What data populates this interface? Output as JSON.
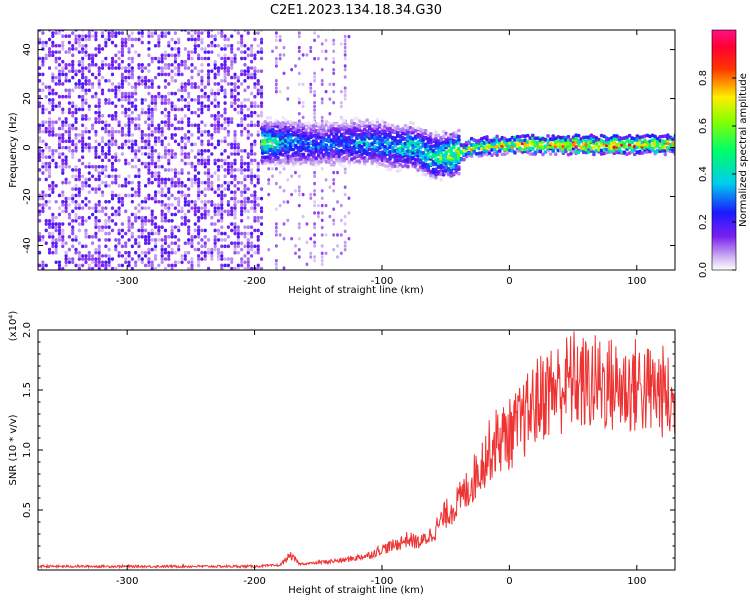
{
  "title": "C2E1.2023.134.18.34.G30",
  "chart_data": [
    {
      "type": "heatmap",
      "xlabel": "Height of straight line (km)",
      "ylabel": "Frequency (Hz)",
      "xlim": [
        -370,
        130
      ],
      "ylim": [
        -50,
        48
      ],
      "xticks": [
        -300,
        -200,
        -100,
        0,
        100
      ],
      "yticks": [
        -40,
        -20,
        0,
        20,
        40
      ],
      "colorbar": {
        "label": "Normalized spectral amplitude",
        "range": [
          0,
          1
        ],
        "ticks": [
          "0.0",
          "0.2",
          "0.4",
          "0.6",
          "0.8"
        ],
        "tick_values": [
          0.0,
          0.2,
          0.4,
          0.6,
          0.8
        ],
        "colormap": "rainbow (white-purple-blue-cyan-green-yellow-red-magenta)"
      },
      "ridge_points": [
        {
          "x": -190,
          "y": 2,
          "amp": 0.55
        },
        {
          "x": -170,
          "y": 2,
          "amp": 0.35
        },
        {
          "x": -150,
          "y": 1,
          "amp": 0.35
        },
        {
          "x": -130,
          "y": 2,
          "amp": 0.35
        },
        {
          "x": -110,
          "y": 2,
          "amp": 0.4
        },
        {
          "x": -90,
          "y": 0,
          "amp": 0.45
        },
        {
          "x": -75,
          "y": 0,
          "amp": 0.5
        },
        {
          "x": -60,
          "y": -4,
          "amp": 0.55
        },
        {
          "x": -45,
          "y": -3,
          "amp": 0.7
        },
        {
          "x": -30,
          "y": 0,
          "amp": 0.75
        },
        {
          "x": 0,
          "y": 1,
          "amp": 0.85
        },
        {
          "x": 30,
          "y": 1,
          "amp": 0.9
        },
        {
          "x": 60,
          "y": 1,
          "amp": 0.95
        },
        {
          "x": 90,
          "y": 1,
          "amp": 0.95
        },
        {
          "x": 120,
          "y": 1,
          "amp": 0.9
        }
      ],
      "grid": false,
      "legend": "colorbar right"
    },
    {
      "type": "line",
      "xlabel": "Height of straight line (km)",
      "ylabel": "SNR (10 * v/v)",
      "y_multiplier": "(x10⁴)",
      "xlim": [
        -370,
        130
      ],
      "ylim": [
        0,
        2.0
      ],
      "xticks": [
        -300,
        -200,
        -100,
        0,
        100
      ],
      "yticks": [
        0.5,
        1.0,
        1.5,
        2.0
      ],
      "ytick_labels": [
        "0.5",
        "1.0",
        "1.5",
        "2.0"
      ],
      "series": [
        {
          "color": "#ee3333",
          "x": [
            -370,
            -300,
            -250,
            -200,
            -180,
            -172,
            -165,
            -150,
            -140,
            -130,
            -120,
            -110,
            -100,
            -90,
            -80,
            -70,
            -60,
            -50,
            -40,
            -30,
            -20,
            -10,
            0,
            10,
            20,
            30,
            40,
            50,
            60,
            70,
            80,
            90,
            100,
            110,
            120,
            130
          ],
          "y": [
            0.03,
            0.03,
            0.03,
            0.03,
            0.04,
            0.12,
            0.05,
            0.06,
            0.07,
            0.08,
            0.1,
            0.12,
            0.17,
            0.2,
            0.25,
            0.22,
            0.3,
            0.45,
            0.55,
            0.7,
            0.9,
            1.05,
            1.1,
            1.2,
            1.35,
            1.45,
            1.48,
            1.55,
            1.5,
            1.52,
            1.5,
            1.47,
            1.5,
            1.45,
            1.45,
            1.3
          ]
        }
      ],
      "grid": false
    }
  ]
}
